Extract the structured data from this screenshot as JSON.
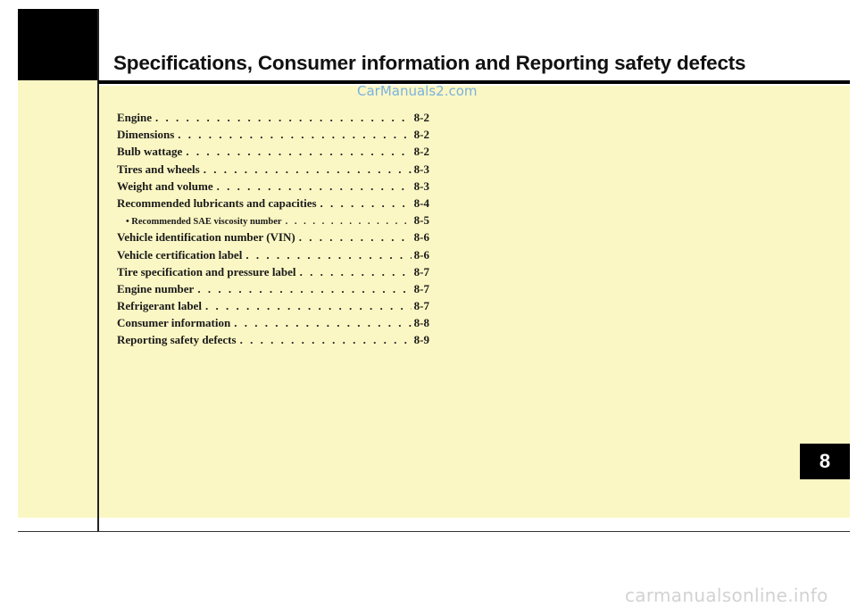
{
  "header": {
    "title": "Specifications, Consumer information and Reporting safety defects"
  },
  "watermarks": {
    "top": "CarManuals2.com",
    "bottom": "carmanualsonline.info"
  },
  "chapter": {
    "number": "8"
  },
  "toc": {
    "items": [
      {
        "label": "Engine",
        "page": "8-2"
      },
      {
        "label": "Dimensions",
        "page": "8-2"
      },
      {
        "label": "Bulb wattage",
        "page": "8-2"
      },
      {
        "label": "Tires and wheels",
        "page": "8-3"
      },
      {
        "label": "Weight and volume",
        "page": "8-3"
      },
      {
        "label": "Recommended lubricants and capacities",
        "page": "8-4"
      },
      {
        "label": "• Recommended SAE viscosity number",
        "page": "8-5"
      },
      {
        "label": "Vehicle identification number (VIN)",
        "page": "8-6"
      },
      {
        "label": "Vehicle certification label",
        "page": "8-6"
      },
      {
        "label": "Tire specification and pressure label",
        "page": "8-7"
      },
      {
        "label": "Engine number",
        "page": "8-7"
      },
      {
        "label": "Refrigerant label",
        "page": "8-7"
      },
      {
        "label": "Consumer information",
        "page": "8-8"
      },
      {
        "label": "Reporting safety defects",
        "page": "8-9"
      }
    ]
  },
  "colors": {
    "panel": "#fbf7c4",
    "tab": "#000000",
    "watermark_top": "#7ab2e0"
  }
}
